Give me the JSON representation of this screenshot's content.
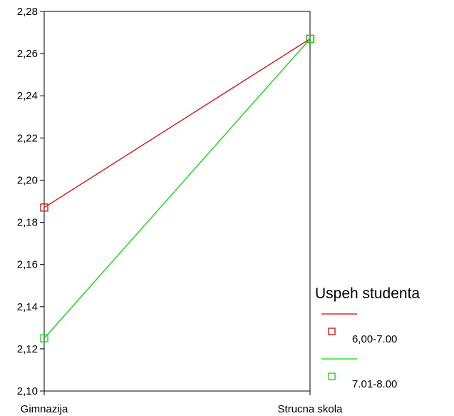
{
  "chart_data": {
    "type": "line",
    "categories": [
      "Gimnazija",
      "Strucna skola"
    ],
    "series": [
      {
        "name": "6,00-7.00",
        "values": [
          2.187,
          2.267
        ],
        "color": "#e00000"
      },
      {
        "name": "7.01-8.00",
        "values": [
          2.125,
          2.267
        ],
        "color": "#00dd00"
      }
    ],
    "ylim": [
      2.1,
      2.28
    ],
    "yticks": [
      2.1,
      2.12,
      2.14,
      2.16,
      2.18,
      2.2,
      2.22,
      2.24,
      2.26,
      2.28
    ],
    "ytick_labels": [
      "2,10",
      "2,12",
      "2,14",
      "2,16",
      "2,18",
      "2,20",
      "2,22",
      "2,24",
      "2,26",
      "2,28"
    ],
    "marker": "square-open",
    "grid": false,
    "legend": {
      "title": "Uspeh studenta",
      "position": "right"
    },
    "title": "",
    "xlabel": "",
    "ylabel": ""
  }
}
